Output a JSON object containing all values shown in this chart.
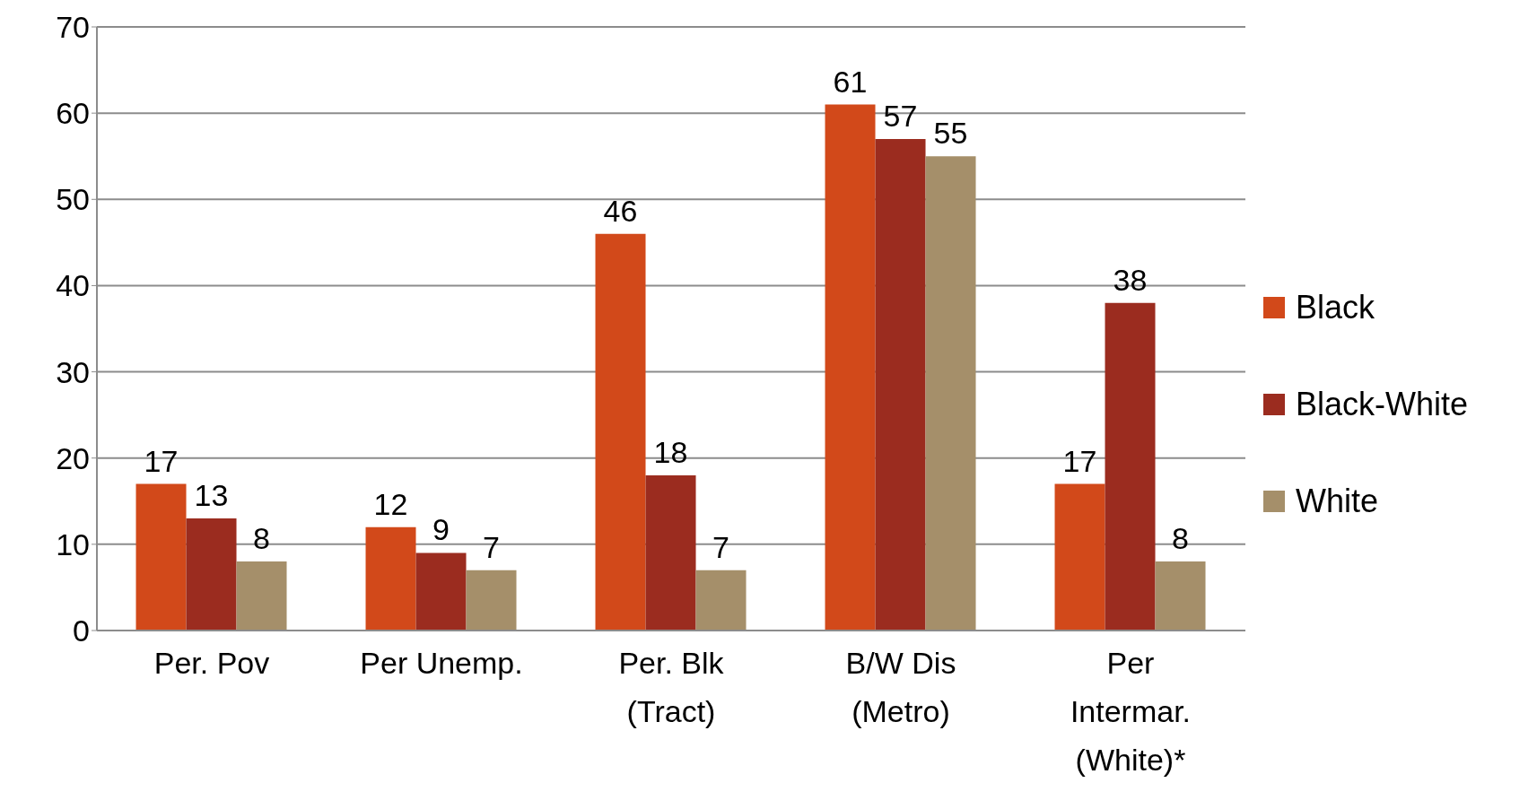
{
  "chart_data": {
    "type": "bar",
    "categories": [
      "Per. Pov",
      "Per Unemp.",
      "Per. Blk (Tract)",
      "B/W Dis (Metro)",
      "Per Intermar. (White)*"
    ],
    "series": [
      {
        "name": "Black",
        "color": "#d2491a",
        "values": [
          17,
          12,
          46,
          61,
          17
        ]
      },
      {
        "name": "Black-White",
        "color": "#9b2c1f",
        "values": [
          13,
          9,
          18,
          57,
          38
        ]
      },
      {
        "name": "White",
        "color": "#a58f6a",
        "values": [
          8,
          7,
          7,
          55,
          8
        ]
      }
    ],
    "ylim": [
      0,
      70
    ],
    "yticks": [
      0,
      10,
      20,
      30,
      40,
      50,
      60,
      70
    ],
    "grid": "y",
    "legend": "right",
    "data_labels": true
  }
}
